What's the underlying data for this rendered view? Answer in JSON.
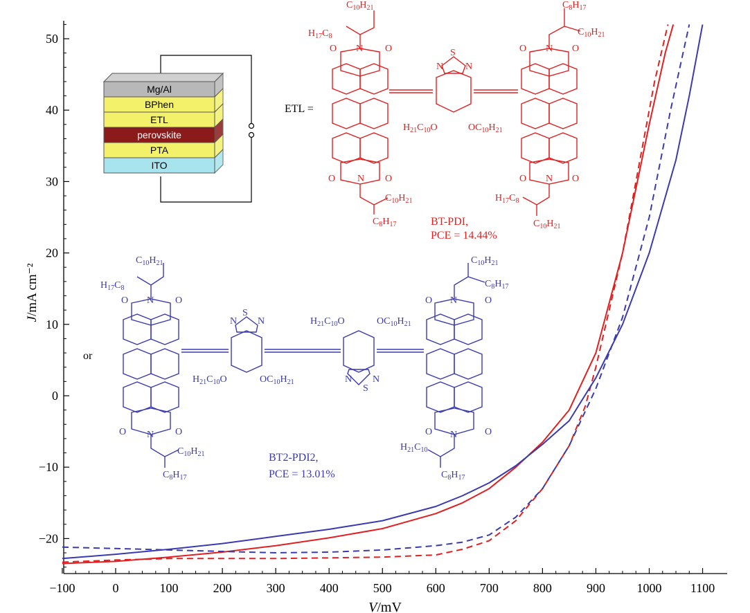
{
  "chart_data": {
    "type": "line",
    "xlabel": "V/mV",
    "ylabel": "J/mA cm⁻²",
    "xlim": [
      -100,
      1100
    ],
    "ylim": [
      -25,
      52
    ],
    "xticks": [
      -100,
      0,
      100,
      200,
      300,
      400,
      500,
      600,
      700,
      800,
      900,
      1000,
      1100
    ],
    "yticks": [
      -20,
      -10,
      0,
      10,
      20,
      30,
      40,
      50
    ],
    "tick_labels_x": [
      "−100",
      "0",
      "100",
      "200",
      "300",
      "400",
      "500",
      "600",
      "700",
      "800",
      "900",
      "1000",
      "1100"
    ],
    "tick_labels_y": [
      "−20",
      "−10",
      "0",
      "10",
      "20",
      "30",
      "40",
      "50"
    ],
    "grid": false,
    "series": [
      {
        "name": "BT-PDI",
        "color": "#e02020",
        "dash": "solid",
        "x": [
          -100,
          0,
          100,
          200,
          300,
          400,
          500,
          600,
          650,
          700,
          750,
          800,
          850,
          900,
          950,
          1000,
          1030,
          1045
        ],
        "y": [
          -23.5,
          -23.2,
          -22.6,
          -21.9,
          -21.0,
          -19.9,
          -18.6,
          -16.5,
          -15.0,
          -13.0,
          -10.0,
          -6.5,
          -2.0,
          6.0,
          20.0,
          38.0,
          48.0,
          52.0
        ]
      },
      {
        "name": "BT-PDI",
        "color": "#e02020",
        "dash": "dashed",
        "x": [
          -100,
          0,
          100,
          200,
          300,
          400,
          500,
          600,
          650,
          700,
          750,
          800,
          850,
          880,
          900,
          950,
          980,
          1010,
          1035
        ],
        "y": [
          -23.3,
          -23.0,
          -22.8,
          -22.8,
          -22.8,
          -22.7,
          -22.6,
          -22.3,
          -21.5,
          -20.3,
          -17.5,
          -13.0,
          -7.0,
          -1.5,
          4.0,
          20.0,
          32.0,
          44.0,
          52.0
        ]
      },
      {
        "name": "BT2-PDI2",
        "color": "#3a3ab0",
        "dash": "solid",
        "x": [
          -100,
          0,
          100,
          200,
          300,
          400,
          500,
          600,
          650,
          700,
          750,
          800,
          850,
          900,
          950,
          1000,
          1050,
          1075,
          1100
        ],
        "y": [
          -22.8,
          -22.2,
          -21.5,
          -20.7,
          -19.7,
          -18.7,
          -17.5,
          -15.5,
          -14.0,
          -12.2,
          -9.8,
          -6.8,
          -3.5,
          2.5,
          10.0,
          20.0,
          33.0,
          42.0,
          52.0
        ]
      },
      {
        "name": "BT2-PDI2",
        "color": "#3a3ab0",
        "dash": "dashed",
        "x": [
          -100,
          0,
          100,
          200,
          300,
          400,
          500,
          600,
          650,
          700,
          750,
          800,
          850,
          900,
          950,
          1000,
          1040,
          1075
        ],
        "y": [
          -21.2,
          -21.4,
          -21.6,
          -21.8,
          -22.0,
          -21.9,
          -21.6,
          -21.0,
          -20.5,
          -19.5,
          -17.0,
          -13.0,
          -7.0,
          1.0,
          11.0,
          25.0,
          40.0,
          52.0
        ]
      }
    ],
    "annotations": {
      "etl_label": "ETL =",
      "or_label": "or",
      "bt_pdi_name": "BT-PDI,",
      "bt_pdi_pce": "PCE = 14.44%",
      "bt2_pdi2_name": "BT2-PDI2,",
      "bt2_pdi2_pce": "PCE = 13.01%",
      "device_layers": [
        "Mg/Al",
        "BPhen",
        "ETL",
        "perovskite",
        "PTA",
        "ITO"
      ],
      "device_layer_colors": [
        "#b8b8b8",
        "#f3f06a",
        "#f3f06a",
        "#8b1a1a",
        "#f3f06a",
        "#a8e4ee"
      ],
      "red_structure_labels": [
        "C10H21",
        "H17C8",
        "C8H17",
        "C10H21",
        "O",
        "O",
        "N",
        "O",
        "O",
        "N",
        "S",
        "N",
        "N",
        "H21C10O",
        "OC10H21",
        "O",
        "O",
        "N",
        "O",
        "O",
        "N",
        "C10H21",
        "C8H17",
        "H17C8",
        "C10H21"
      ],
      "blue_structure_labels": [
        "C10H21",
        "H17C8",
        "C10H21",
        "C8H17",
        "O",
        "N",
        "O",
        "N",
        "S",
        "N",
        "H21C10O",
        "OC10H21",
        "H21C10O",
        "OC10H21",
        "N",
        "S",
        "N",
        "O",
        "N",
        "O",
        "O",
        "N",
        "O",
        "C10H21",
        "C8H17",
        "H21C10",
        "C8H17"
      ]
    }
  }
}
